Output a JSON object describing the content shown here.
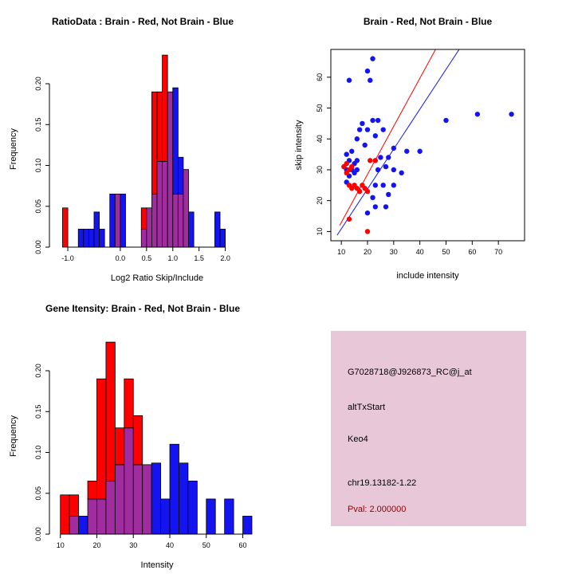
{
  "colors": {
    "red": "#ff0000",
    "blue": "#1414f0",
    "purple": "#a02ca0",
    "axis": "#000000",
    "info_bg": "#e8c8d8",
    "pval": "#8b0000",
    "background": "#ffffff"
  },
  "info_panel": {
    "probe_id": "G7028718@J926873_RC@j_at",
    "splice_event": "altTxStart",
    "gene": "Keo4",
    "locus": "chr19.13182-1.22",
    "pval": "Pval: 2.000000"
  },
  "chart_data": [
    {
      "id": "ratio_hist",
      "type": "bar",
      "title": "RatioData : Brain - Red, Not Brain - Blue",
      "xlabel": "Log2 Ratio Skip/Include",
      "ylabel": "Frequency",
      "xlim": [
        -1.35,
        2.75
      ],
      "ylim": [
        0,
        0.24
      ],
      "xticks": [
        -1.0,
        0.0,
        0.5,
        1.0,
        1.5,
        2.0
      ],
      "xtick_labels": [
        "-1.0",
        "0.0",
        "0.5",
        "1.0",
        "1.5",
        "2.0"
      ],
      "yticks": [
        0,
        0.05,
        0.1,
        0.15,
        0.2
      ],
      "ytick_labels": [
        "0.00",
        "0.05",
        "0.10",
        "0.15",
        "0.20"
      ],
      "bin_width": 0.1,
      "bins": [
        {
          "x0": -1.1,
          "red": 0.048,
          "blue": 0
        },
        {
          "x0": -0.8,
          "red": 0,
          "blue": 0.022
        },
        {
          "x0": -0.7,
          "red": 0,
          "blue": 0.022
        },
        {
          "x0": -0.6,
          "red": 0,
          "blue": 0.022
        },
        {
          "x0": -0.5,
          "red": 0,
          "blue": 0.043
        },
        {
          "x0": -0.4,
          "red": 0,
          "blue": 0.022
        },
        {
          "x0": -0.2,
          "red": 0,
          "blue": 0.065
        },
        {
          "x0": -0.1,
          "red": 0.065,
          "blue": 0.065
        },
        {
          "x0": 0.0,
          "red": 0,
          "blue": 0.065
        },
        {
          "x0": 0.4,
          "red": 0.048,
          "blue": 0.022
        },
        {
          "x0": 0.5,
          "red": 0.048,
          "blue": 0.048
        },
        {
          "x0": 0.6,
          "red": 0.19,
          "blue": 0.065
        },
        {
          "x0": 0.7,
          "red": 0.19,
          "blue": 0.105
        },
        {
          "x0": 0.8,
          "red": 0.235,
          "blue": 0.105
        },
        {
          "x0": 0.9,
          "red": 0.19,
          "blue": 0.19
        },
        {
          "x0": 1.0,
          "red": 0.065,
          "blue": 0.195
        },
        {
          "x0": 1.1,
          "red": 0.065,
          "blue": 0.11
        },
        {
          "x0": 1.2,
          "red": 0.095,
          "blue": 0.095
        },
        {
          "x0": 1.3,
          "red": 0,
          "blue": 0.043
        },
        {
          "x0": 1.8,
          "red": 0,
          "blue": 0.043
        },
        {
          "x0": 1.9,
          "red": 0,
          "blue": 0.022
        }
      ]
    },
    {
      "id": "scatter",
      "type": "scatter",
      "title": "Brain - Red, Not Brain - Blue",
      "xlabel": "include intensity",
      "ylabel": "skip intensity",
      "xlim": [
        6,
        80
      ],
      "ylim": [
        7,
        69
      ],
      "xticks": [
        10,
        20,
        30,
        40,
        50,
        60,
        70
      ],
      "xtick_labels": [
        "10",
        "20",
        "30",
        "40",
        "50",
        "60",
        "70"
      ],
      "yticks": [
        10,
        20,
        30,
        40,
        50,
        60
      ],
      "ytick_labels": [
        "10",
        "20",
        "30",
        "40",
        "50",
        "60"
      ],
      "red_line": {
        "x1": 9.4,
        "y1": 12,
        "x2": 46,
        "y2": 69
      },
      "blue_line": {
        "x1": 8.4,
        "y1": 8.8,
        "x2": 55,
        "y2": 69
      },
      "blue_points": [
        [
          13,
          59
        ],
        [
          20,
          62
        ],
        [
          22,
          66
        ],
        [
          21,
          59
        ],
        [
          50,
          46
        ],
        [
          62,
          48
        ],
        [
          75,
          48
        ],
        [
          40,
          36
        ],
        [
          35,
          36
        ],
        [
          30,
          37
        ],
        [
          28,
          34
        ],
        [
          24,
          46
        ],
        [
          22,
          46
        ],
        [
          26,
          43
        ],
        [
          20,
          43
        ],
        [
          18,
          45
        ],
        [
          17,
          43
        ],
        [
          16,
          40
        ],
        [
          23,
          41
        ],
        [
          19,
          38
        ],
        [
          25,
          34
        ],
        [
          27,
          31
        ],
        [
          30,
          30
        ],
        [
          33,
          29
        ],
        [
          24,
          30
        ],
        [
          12,
          35
        ],
        [
          13,
          33
        ],
        [
          14,
          36
        ],
        [
          15,
          32
        ],
        [
          16,
          33
        ],
        [
          11,
          31
        ],
        [
          12,
          30
        ],
        [
          13,
          28
        ],
        [
          14,
          30
        ],
        [
          15,
          29
        ],
        [
          16,
          30
        ],
        [
          12,
          26
        ],
        [
          23,
          25
        ],
        [
          26,
          25
        ],
        [
          30,
          25
        ],
        [
          28,
          22
        ],
        [
          22,
          21
        ],
        [
          23,
          18
        ],
        [
          27,
          18
        ],
        [
          20,
          16
        ]
      ],
      "red_points": [
        [
          11,
          31
        ],
        [
          12,
          32
        ],
        [
          13,
          30
        ],
        [
          14,
          31
        ],
        [
          12,
          29
        ],
        [
          13,
          25
        ],
        [
          14,
          24
        ],
        [
          15,
          25
        ],
        [
          16,
          24
        ],
        [
          17,
          23
        ],
        [
          19,
          24
        ],
        [
          20,
          23
        ],
        [
          18,
          25
        ],
        [
          21,
          33
        ],
        [
          23,
          33
        ],
        [
          13,
          14
        ],
        [
          20,
          10
        ]
      ]
    },
    {
      "id": "gene_hist",
      "type": "bar",
      "title": "Gene Itensity: Brain - Red, Not Brain - Blue",
      "xlabel": "Intensity",
      "ylabel": "Frequency",
      "xlim": [
        7,
        66
      ],
      "ylim": [
        0,
        0.24
      ],
      "xticks": [
        10,
        20,
        30,
        40,
        50,
        60
      ],
      "xtick_labels": [
        "10",
        "20",
        "30",
        "40",
        "50",
        "60"
      ],
      "yticks": [
        0,
        0.05,
        0.1,
        0.15,
        0.2
      ],
      "ytick_labels": [
        "0.00",
        "0.05",
        "0.10",
        "0.15",
        "0.20"
      ],
      "bin_width": 2.5,
      "bins": [
        {
          "x0": 10,
          "red": 0.048,
          "blue": 0
        },
        {
          "x0": 12.5,
          "red": 0.048,
          "blue": 0.022
        },
        {
          "x0": 15,
          "red": 0,
          "blue": 0.022
        },
        {
          "x0": 17.5,
          "red": 0.065,
          "blue": 0.043
        },
        {
          "x0": 20,
          "red": 0.19,
          "blue": 0.043
        },
        {
          "x0": 22.5,
          "red": 0.235,
          "blue": 0.065
        },
        {
          "x0": 25,
          "red": 0.13,
          "blue": 0.085
        },
        {
          "x0": 27.5,
          "red": 0.19,
          "blue": 0.13
        },
        {
          "x0": 30,
          "red": 0.145,
          "blue": 0.085
        },
        {
          "x0": 32.5,
          "red": 0.085,
          "blue": 0.085
        },
        {
          "x0": 35,
          "red": 0,
          "blue": 0.087
        },
        {
          "x0": 37.5,
          "red": 0,
          "blue": 0.043
        },
        {
          "x0": 40,
          "red": 0,
          "blue": 0.11
        },
        {
          "x0": 42.5,
          "red": 0,
          "blue": 0.087
        },
        {
          "x0": 45,
          "red": 0,
          "blue": 0.065
        },
        {
          "x0": 50,
          "red": 0,
          "blue": 0.043
        },
        {
          "x0": 55,
          "red": 0,
          "blue": 0.043
        },
        {
          "x0": 60,
          "red": 0,
          "blue": 0.022
        }
      ]
    }
  ]
}
